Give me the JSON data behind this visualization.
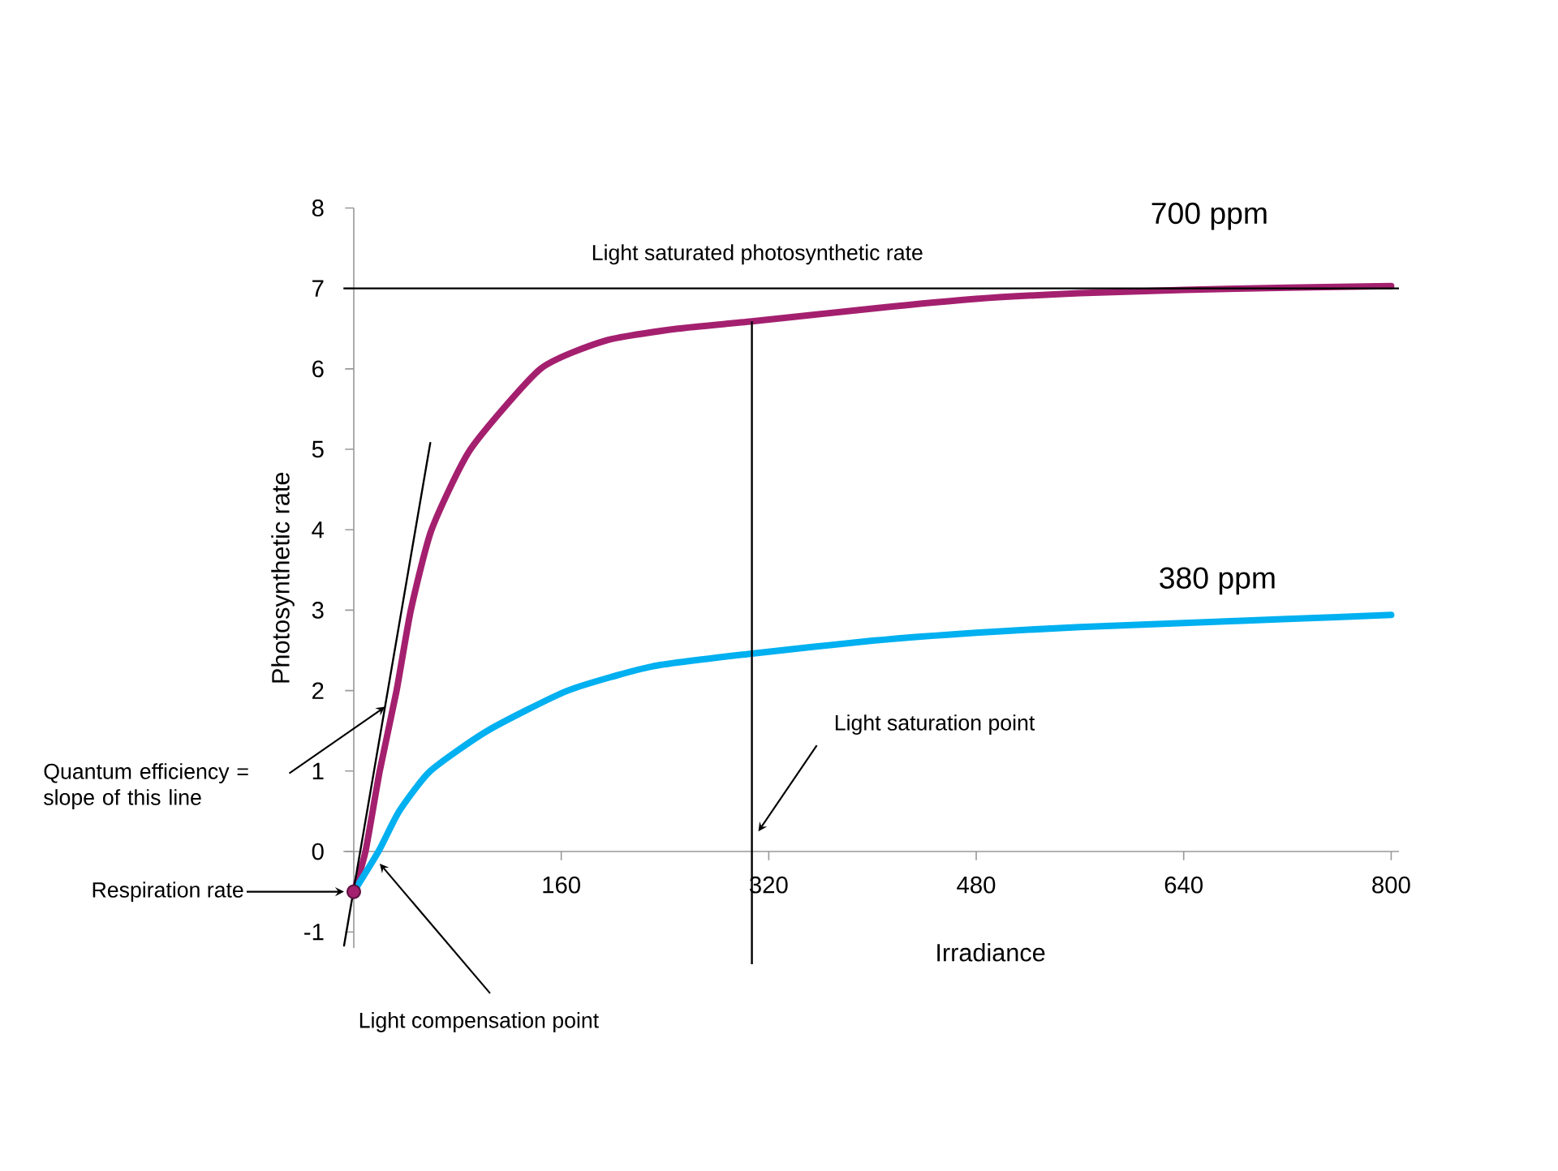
{
  "chart_data": {
    "type": "line",
    "xlabel": "Irradiance",
    "ylabel": "Photosynthetic rate",
    "xlim": [
      -8,
      806
    ],
    "ylim": [
      -1.2,
      8
    ],
    "xticks": [
      {
        "value": 0,
        "label": null
      },
      160,
      320,
      480,
      640,
      800
    ],
    "yticks": [
      -1,
      0,
      1,
      2,
      3,
      4,
      5,
      6,
      7,
      8
    ],
    "grid": false,
    "legend": false,
    "series": [
      {
        "name": "700 ppm",
        "color": "#a4206f",
        "x": [
          0,
          9,
          20,
          33,
          44,
          60,
          90,
          144,
          194,
          250,
          307,
          400,
          480,
          560,
          640,
          720,
          800
        ],
        "values": [
          -0.5,
          0,
          1,
          2,
          3,
          4,
          5,
          6,
          6.35,
          6.5,
          6.59,
          6.75,
          6.87,
          6.94,
          6.98,
          7.01,
          7.03
        ]
      },
      {
        "name": "380 ppm",
        "color": "#00b0f0",
        "x": [
          0,
          19,
          35,
          59,
          103,
          165,
          230,
          307,
          400,
          480,
          560,
          640,
          720,
          800
        ],
        "values": [
          -0.5,
          0,
          0.5,
          1,
          1.5,
          2,
          2.3,
          2.46,
          2.62,
          2.72,
          2.79,
          2.84,
          2.89,
          2.94
        ]
      },
      {
        "type": "line",
        "color": "#000000",
        "x": [
          -7.5,
          59
        ],
        "values": [
          -1.17,
          5.08
        ]
      },
      {
        "type": "scatter",
        "color": "#a4206f",
        "x": [
          0
        ],
        "values": [
          -0.5
        ]
      }
    ],
    "ref_lines": [
      {
        "axis": "y",
        "value": 7,
        "label": "Light saturated photosynthetic rate",
        "color": "#000000"
      },
      {
        "axis": "x",
        "value": 307,
        "color": "#000000"
      }
    ],
    "annotations": [
      "Quantum efficiency = slope of this line",
      "Respiration rate",
      {
        "text": "Light compensation point",
        "x": 20,
        "y": -0.15
      },
      {
        "text": "Light saturation point",
        "x": 312,
        "y": 0.25
      }
    ]
  }
}
